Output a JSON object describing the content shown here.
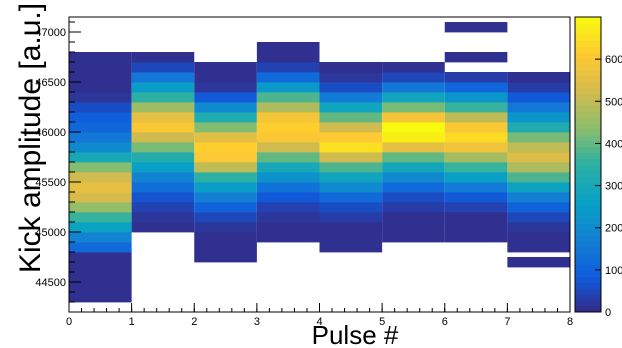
{
  "chart_data": {
    "type": "heatmap",
    "title": "",
    "xlabel": "Pulse #",
    "ylabel": "Kick amplitude [a.u.]",
    "xlim": [
      0,
      8
    ],
    "ylim": [
      44200,
      47150
    ],
    "x_ticks": [
      0,
      1,
      2,
      3,
      4,
      5,
      6,
      7,
      8
    ],
    "y_ticks": [
      44500,
      45000,
      45500,
      46000,
      46500,
      47000
    ],
    "colorbar": {
      "min": 0,
      "max": 700,
      "ticks": [
        0,
        100,
        200,
        300,
        400,
        500,
        600
      ],
      "tick_labels": [
        "0",
        "100",
        "200",
        "300",
        "400",
        "500",
        "600"
      ]
    },
    "y_bin_width": 100,
    "grid": false,
    "legend": "none",
    "columns": [
      {
        "x_range": [
          0,
          1
        ],
        "bins": [
          [
            44350,
            10
          ],
          [
            44450,
            10
          ],
          [
            44550,
            10
          ],
          [
            44650,
            10
          ],
          [
            44750,
            10
          ],
          [
            44850,
            120
          ],
          [
            44950,
            180
          ],
          [
            45050,
            270
          ],
          [
            45150,
            360
          ],
          [
            45250,
            450
          ],
          [
            45350,
            530
          ],
          [
            45450,
            560
          ],
          [
            45550,
            520
          ],
          [
            45650,
            430
          ],
          [
            45750,
            300
          ],
          [
            45850,
            200
          ],
          [
            45950,
            150
          ],
          [
            46050,
            110
          ],
          [
            46150,
            90
          ],
          [
            46250,
            60
          ],
          [
            46350,
            20
          ],
          [
            46450,
            10
          ],
          [
            46550,
            10
          ],
          [
            46650,
            10
          ],
          [
            46750,
            10
          ]
        ]
      },
      {
        "x_range": [
          1,
          2
        ],
        "bins": [
          [
            45050,
            10
          ],
          [
            45150,
            20
          ],
          [
            45250,
            40
          ],
          [
            45350,
            70
          ],
          [
            45450,
            130
          ],
          [
            45550,
            180
          ],
          [
            45650,
            260
          ],
          [
            45750,
            330
          ],
          [
            45850,
            420
          ],
          [
            45950,
            520
          ],
          [
            46050,
            600
          ],
          [
            46150,
            560
          ],
          [
            46250,
            460
          ],
          [
            46350,
            350
          ],
          [
            46450,
            250
          ],
          [
            46550,
            150
          ],
          [
            46650,
            50
          ],
          [
            46750,
            10
          ]
        ]
      },
      {
        "x_range": [
          2,
          3
        ],
        "bins": [
          [
            44750,
            10
          ],
          [
            44850,
            10
          ],
          [
            44950,
            10
          ],
          [
            45050,
            20
          ],
          [
            45150,
            50
          ],
          [
            45250,
            100
          ],
          [
            45350,
            170
          ],
          [
            45450,
            250
          ],
          [
            45550,
            350
          ],
          [
            45650,
            500
          ],
          [
            45750,
            600
          ],
          [
            45850,
            620
          ],
          [
            45950,
            550
          ],
          [
            46050,
            430
          ],
          [
            46150,
            320
          ],
          [
            46250,
            200
          ],
          [
            46350,
            80
          ],
          [
            46450,
            20
          ],
          [
            46550,
            10
          ],
          [
            46650,
            10
          ]
        ]
      },
      {
        "x_range": [
          3,
          4
        ],
        "bins": [
          [
            44950,
            10
          ],
          [
            45050,
            10
          ],
          [
            45150,
            20
          ],
          [
            45250,
            40
          ],
          [
            45350,
            80
          ],
          [
            45450,
            140
          ],
          [
            45550,
            220
          ],
          [
            45650,
            300
          ],
          [
            45750,
            400
          ],
          [
            45850,
            520
          ],
          [
            45950,
            600
          ],
          [
            46050,
            620
          ],
          [
            46150,
            590
          ],
          [
            46250,
            480
          ],
          [
            46350,
            380
          ],
          [
            46450,
            240
          ],
          [
            46550,
            120
          ],
          [
            46650,
            40
          ],
          [
            46750,
            10
          ],
          [
            46850,
            10
          ]
        ]
      },
      {
        "x_range": [
          4,
          5
        ],
        "bins": [
          [
            44850,
            10
          ],
          [
            44950,
            10
          ],
          [
            45050,
            10
          ],
          [
            45150,
            30
          ],
          [
            45250,
            60
          ],
          [
            45350,
            120
          ],
          [
            45450,
            200
          ],
          [
            45550,
            280
          ],
          [
            45650,
            380
          ],
          [
            45750,
            520
          ],
          [
            45850,
            650
          ],
          [
            45950,
            610
          ],
          [
            46050,
            520
          ],
          [
            46150,
            400
          ],
          [
            46250,
            280
          ],
          [
            46350,
            160
          ],
          [
            46450,
            60
          ],
          [
            46550,
            20
          ],
          [
            46650,
            10
          ]
        ]
      },
      {
        "x_range": [
          5,
          6
        ],
        "bins": [
          [
            44950,
            10
          ],
          [
            45050,
            10
          ],
          [
            45150,
            10
          ],
          [
            45250,
            30
          ],
          [
            45350,
            60
          ],
          [
            45450,
            120
          ],
          [
            45550,
            200
          ],
          [
            45650,
            290
          ],
          [
            45750,
            400
          ],
          [
            45850,
            560
          ],
          [
            45950,
            680
          ],
          [
            46050,
            700
          ],
          [
            46150,
            590
          ],
          [
            46250,
            420
          ],
          [
            46350,
            280
          ],
          [
            46450,
            150
          ],
          [
            46550,
            50
          ],
          [
            46650,
            10
          ]
        ]
      },
      {
        "x_range": [
          6,
          7
        ],
        "bins": [
          [
            44950,
            10
          ],
          [
            45050,
            10
          ],
          [
            45150,
            10
          ],
          [
            45250,
            40
          ],
          [
            45350,
            80
          ],
          [
            45450,
            160
          ],
          [
            45550,
            260
          ],
          [
            45650,
            360
          ],
          [
            45750,
            470
          ],
          [
            45850,
            580
          ],
          [
            45950,
            640
          ],
          [
            46050,
            600
          ],
          [
            46150,
            500
          ],
          [
            46250,
            360
          ],
          [
            46350,
            230
          ],
          [
            46450,
            110
          ],
          [
            46550,
            30
          ],
          [
            46750,
            10
          ],
          [
            47050,
            10
          ]
        ]
      },
      {
        "x_range": [
          7,
          8
        ],
        "bins": [
          [
            44700,
            10
          ],
          [
            44850,
            10
          ],
          [
            44950,
            10
          ],
          [
            45050,
            20
          ],
          [
            45150,
            50
          ],
          [
            45250,
            100
          ],
          [
            45350,
            170
          ],
          [
            45450,
            270
          ],
          [
            45550,
            380
          ],
          [
            45650,
            480
          ],
          [
            45750,
            540
          ],
          [
            45850,
            500
          ],
          [
            45950,
            420
          ],
          [
            46050,
            320
          ],
          [
            46150,
            230
          ],
          [
            46250,
            150
          ],
          [
            46350,
            80
          ],
          [
            46450,
            30
          ],
          [
            46550,
            10
          ]
        ]
      }
    ]
  }
}
